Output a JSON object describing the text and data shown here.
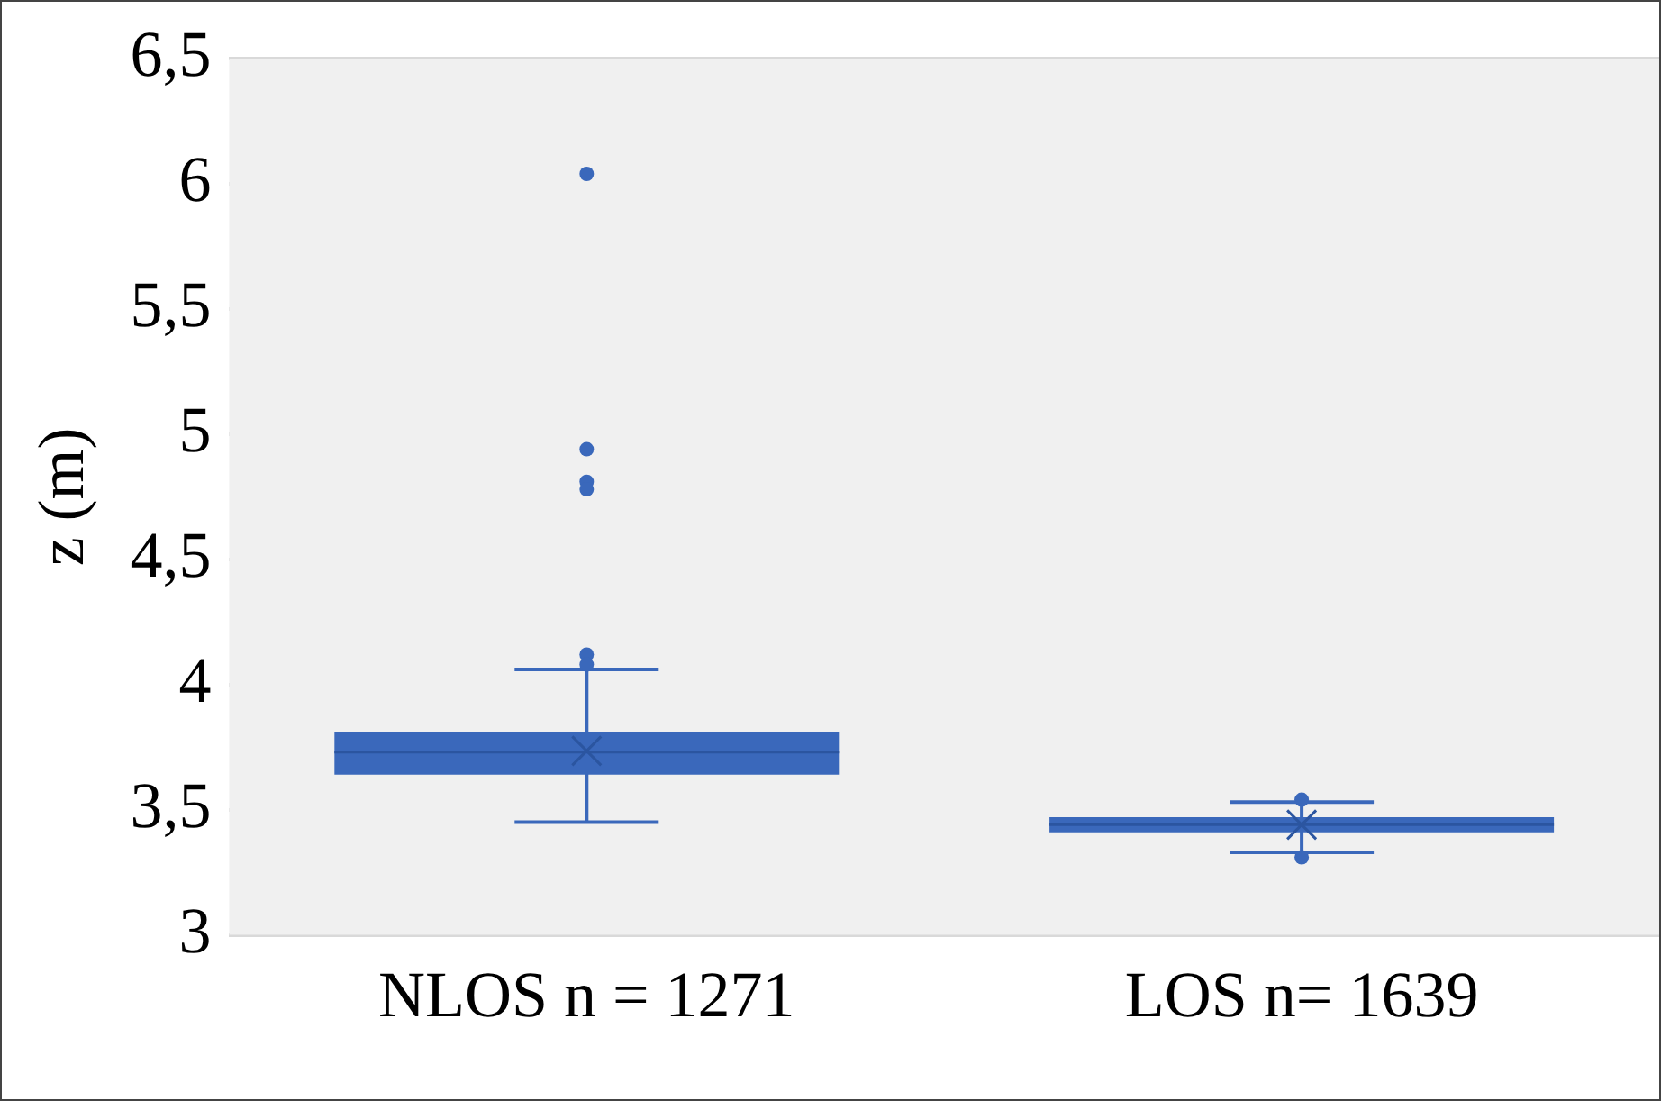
{
  "chart_data": {
    "type": "box",
    "ylabel": "z (m)",
    "categories": [
      "NLOS n = 1271",
      "LOS n= 1639"
    ],
    "color": "#3a68bb",
    "boxes": [
      {
        "low": 3.45,
        "q1": 3.64,
        "median": 3.73,
        "q3": 3.81,
        "high": 4.06,
        "mean": 3.735,
        "outliers": [
          6.04,
          4.94,
          4.81,
          4.78,
          4.12,
          4.08
        ]
      },
      {
        "low": 3.33,
        "q1": 3.41,
        "median": 3.44,
        "q3": 3.47,
        "high": 3.53,
        "mean": 3.44,
        "outliers": [
          3.54,
          3.31
        ]
      }
    ],
    "ylim": [
      3,
      6.5
    ],
    "yticks": [
      {
        "value": 3,
        "label": "3"
      },
      {
        "value": 3.5,
        "label": "3,5"
      },
      {
        "value": 4,
        "label": "4"
      },
      {
        "value": 4.5,
        "label": "4,5"
      },
      {
        "value": 5,
        "label": "5"
      },
      {
        "value": 5.5,
        "label": "5,5"
      },
      {
        "value": 6,
        "label": "6"
      },
      {
        "value": 6.5,
        "label": "6,5"
      }
    ],
    "grid": "y",
    "legend": false,
    "marker": "circle"
  }
}
